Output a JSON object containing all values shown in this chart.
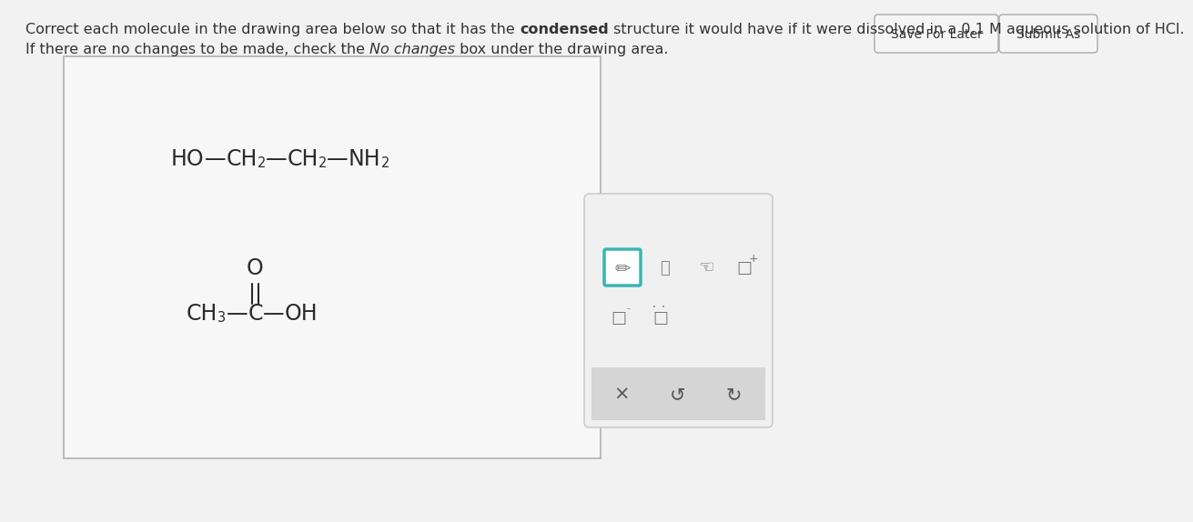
{
  "page_bg": "#f2f2f2",
  "box_bg": "#f7f7f7",
  "box_border": "#b0b0b0",
  "text_color": "#333333",
  "mol_color": "#2a2a2a",
  "toolbar_bg": "#f0f0f0",
  "toolbar_border": "#cccccc",
  "pencil_border": "#3ab5b5",
  "gray_bar": "#d5d5d5",
  "button_bg": "#f5f5f5",
  "button_border": "#aaaaaa",
  "save_button": "Save For Later",
  "submit_button": "Submit As",
  "line1_pre": "Correct each molecule in the drawing area below so that it has the ",
  "line1_bold": "condensed",
  "line1_post": " structure it would have if it were dissolved in a 0.1 M aqueous solution of HCl.",
  "line2_pre": "If there are no changes to be made, check the ",
  "line2_italic": "No changes",
  "line2_post": " box under the drawing area."
}
